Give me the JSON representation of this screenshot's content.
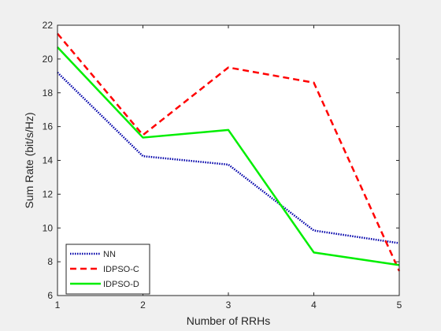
{
  "chart_data": {
    "type": "line",
    "title": "",
    "xlabel": "Number of RRHs",
    "ylabel": "Sum Rate (bit/s/Hz)",
    "xlim": [
      1,
      5
    ],
    "ylim": [
      6,
      22
    ],
    "xticks": [
      1,
      2,
      3,
      4,
      5
    ],
    "yticks": [
      6,
      8,
      10,
      12,
      14,
      16,
      18,
      20,
      22
    ],
    "grid": false,
    "legend_position": "bottom-left",
    "x": [
      1,
      2,
      3,
      4,
      5
    ],
    "series": [
      {
        "name": "NN",
        "values": [
          19.2,
          14.25,
          13.75,
          9.85,
          9.1
        ],
        "color": "#0000aa",
        "style": "dotted"
      },
      {
        "name": "IDPSO-C",
        "values": [
          21.5,
          15.5,
          19.5,
          18.6,
          7.45
        ],
        "color": "#ff0000",
        "style": "dashed"
      },
      {
        "name": "IDPSO-D",
        "values": [
          20.7,
          15.35,
          15.8,
          8.55,
          7.8
        ],
        "color": "#00ee00",
        "style": "solid"
      }
    ]
  }
}
